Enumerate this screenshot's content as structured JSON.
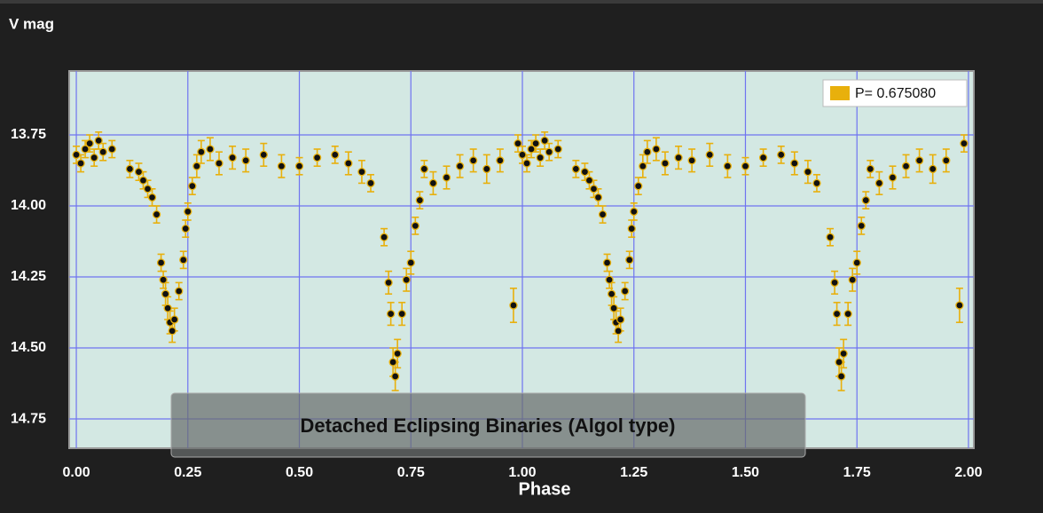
{
  "chart_data": {
    "type": "scatter",
    "y_label": "V mag",
    "x_label": "Phase",
    "annotation": "Detached Eclipsing Binaries (Algol type)",
    "xlim": [
      -0.016,
      2.012
    ],
    "ylim": [
      14.853,
      13.525
    ],
    "xticks": [
      {
        "value": 0,
        "label": "0.00"
      },
      0.25,
      {
        "value": 0.5,
        "label": "0.50"
      },
      0.75,
      {
        "value": 1,
        "label": "1.00"
      },
      1.25,
      {
        "value": 1.5,
        "label": "1.50"
      },
      1.75,
      {
        "value": 2,
        "label": "2.00"
      }
    ],
    "yticks": [
      13.75,
      {
        "value": 14,
        "label": "14.00"
      },
      14.25,
      {
        "value": 14.5,
        "label": "14.50"
      },
      14.75
    ],
    "grid": true,
    "grid_color": "#6f73f0",
    "plot_color": "#d3e8e3",
    "legend": "upper right",
    "x": [
      0,
      0.01,
      0.02,
      0.03,
      0.04,
      0.05,
      0.06,
      0.08,
      0.12,
      0.14,
      0.15,
      0.16,
      0.17,
      0.18,
      0.19,
      0.195,
      0.2,
      0.205,
      0.21,
      0.215,
      0.22,
      0.23,
      0.24,
      0.245,
      0.25,
      0.26,
      0.27,
      0.28,
      0.3,
      0.32,
      0.35,
      0.38,
      0.42,
      0.46,
      0.5,
      0.54,
      0.58,
      0.61,
      0.64,
      0.66,
      0.69,
      0.7,
      0.705,
      0.71,
      0.715,
      0.72,
      0.73,
      0.74,
      0.75,
      0.76,
      0.77,
      0.78,
      0.8,
      0.83,
      0.86,
      0.89,
      0.92,
      0.95,
      0.98,
      0.99,
      1,
      1.01,
      1.02,
      1.03,
      1.04,
      1.05,
      1.06,
      1.08,
      1.12,
      1.14,
      1.15,
      1.16,
      1.17,
      1.18,
      1.19,
      1.195,
      1.2,
      1.205,
      1.21,
      1.215,
      1.22,
      1.23,
      1.24,
      1.245,
      1.25,
      1.26,
      1.27,
      1.28,
      1.3,
      1.32,
      1.35,
      1.38,
      1.42,
      1.46,
      1.5,
      1.54,
      1.58,
      1.61,
      1.64,
      1.66,
      1.69,
      1.7,
      1.705,
      1.71,
      1.715,
      1.72,
      1.73,
      1.74,
      1.75,
      1.76,
      1.77,
      1.78,
      1.8,
      1.83,
      1.86,
      1.89,
      1.92,
      1.95,
      1.98,
      1.99
    ],
    "series": [
      {
        "name": "P= 0.675080",
        "color": "#e8b00c",
        "values": [
          13.82,
          13.85,
          13.8,
          13.78,
          13.83,
          13.77,
          13.81,
          13.8,
          13.87,
          13.88,
          13.91,
          13.94,
          13.97,
          14.03,
          14.2,
          14.26,
          14.31,
          14.36,
          14.41,
          14.44,
          14.4,
          14.3,
          14.19,
          14.08,
          14.02,
          13.93,
          13.86,
          13.81,
          13.8,
          13.85,
          13.83,
          13.84,
          13.82,
          13.86,
          13.86,
          13.83,
          13.82,
          13.85,
          13.88,
          13.92,
          14.11,
          14.27,
          14.38,
          14.55,
          14.6,
          14.52,
          14.38,
          14.26,
          14.2,
          14.07,
          13.98,
          13.87,
          13.92,
          13.9,
          13.86,
          13.84,
          13.87,
          13.84,
          14.35,
          13.78,
          13.82,
          13.85,
          13.8,
          13.78,
          13.83,
          13.77,
          13.81,
          13.8,
          13.87,
          13.88,
          13.91,
          13.94,
          13.97,
          14.03,
          14.2,
          14.26,
          14.31,
          14.36,
          14.41,
          14.44,
          14.4,
          14.3,
          14.19,
          14.08,
          14.02,
          13.93,
          13.86,
          13.81,
          13.8,
          13.85,
          13.83,
          13.84,
          13.82,
          13.86,
          13.86,
          13.83,
          13.82,
          13.85,
          13.88,
          13.92,
          14.11,
          14.27,
          14.38,
          14.55,
          14.6,
          14.52,
          14.38,
          14.26,
          14.2,
          14.07,
          13.98,
          13.87,
          13.92,
          13.9,
          13.86,
          13.84,
          13.87,
          13.84,
          14.35,
          13.78
        ],
        "errors": [
          0.03,
          0.03,
          0.03,
          0.03,
          0.03,
          0.03,
          0.03,
          0.03,
          0.03,
          0.03,
          0.03,
          0.03,
          0.03,
          0.03,
          0.03,
          0.03,
          0.04,
          0.04,
          0.04,
          0.04,
          0.04,
          0.03,
          0.03,
          0.03,
          0.03,
          0.03,
          0.04,
          0.04,
          0.04,
          0.04,
          0.04,
          0.04,
          0.04,
          0.04,
          0.03,
          0.03,
          0.03,
          0.04,
          0.04,
          0.03,
          0.03,
          0.04,
          0.04,
          0.05,
          0.05,
          0.05,
          0.04,
          0.04,
          0.04,
          0.03,
          0.03,
          0.03,
          0.04,
          0.04,
          0.04,
          0.04,
          0.05,
          0.04,
          0.06,
          0.03,
          0.03,
          0.03,
          0.03,
          0.03,
          0.03,
          0.03,
          0.03,
          0.03,
          0.03,
          0.03,
          0.03,
          0.03,
          0.03,
          0.03,
          0.03,
          0.03,
          0.04,
          0.04,
          0.04,
          0.04,
          0.04,
          0.03,
          0.03,
          0.03,
          0.03,
          0.03,
          0.04,
          0.04,
          0.04,
          0.04,
          0.04,
          0.04,
          0.04,
          0.04,
          0.03,
          0.03,
          0.03,
          0.04,
          0.04,
          0.03,
          0.03,
          0.04,
          0.04,
          0.05,
          0.05,
          0.05,
          0.04,
          0.04,
          0.04,
          0.03,
          0.03,
          0.03,
          0.04,
          0.04,
          0.04,
          0.04,
          0.05,
          0.04,
          0.06,
          0.03
        ]
      }
    ]
  }
}
